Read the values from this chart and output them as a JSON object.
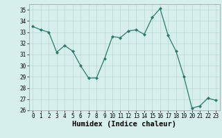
{
  "x": [
    0,
    1,
    2,
    3,
    4,
    5,
    6,
    7,
    8,
    9,
    10,
    11,
    12,
    13,
    14,
    15,
    16,
    17,
    18,
    19,
    20,
    21,
    22,
    23
  ],
  "y": [
    33.5,
    33.2,
    33.0,
    31.2,
    31.8,
    31.3,
    30.0,
    28.9,
    28.9,
    30.6,
    32.6,
    32.5,
    33.1,
    33.2,
    32.8,
    34.3,
    35.1,
    32.7,
    31.3,
    29.0,
    26.2,
    26.4,
    27.1,
    26.9
  ],
  "line_color": "#2a7a6a",
  "marker": "D",
  "marker_size": 2.0,
  "bg_color": "#d6eeec",
  "grid_color": "#b8d8d4",
  "xlabel": "Humidex (Indice chaleur)",
  "ylim": [
    26,
    35.5
  ],
  "xlim": [
    -0.5,
    23.5
  ],
  "yticks": [
    26,
    27,
    28,
    29,
    30,
    31,
    32,
    33,
    34,
    35
  ],
  "xticks": [
    0,
    1,
    2,
    3,
    4,
    5,
    6,
    7,
    8,
    9,
    10,
    11,
    12,
    13,
    14,
    15,
    16,
    17,
    18,
    19,
    20,
    21,
    22,
    23
  ],
  "tick_label_fontsize": 5.5,
  "xlabel_fontsize": 7.5
}
